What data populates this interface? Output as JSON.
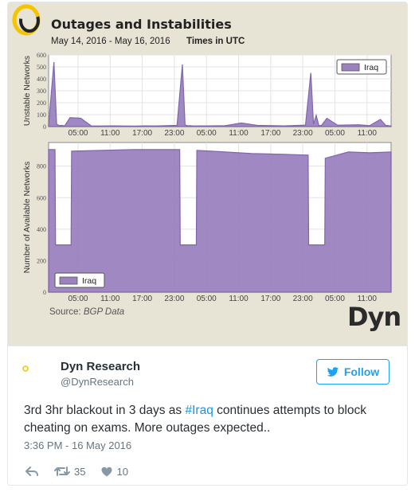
{
  "chart": {
    "title": "Outages and Instabilities",
    "date_range": "May 14, 2016 - May 16, 2016",
    "timezone": "Times in UTC",
    "source_label": "Source:",
    "source_value": "BGP Data",
    "brand": "Dyn"
  },
  "chart_data": [
    {
      "type": "area",
      "ylabel": "Unstable Networks",
      "ylim": [
        0,
        600
      ],
      "yticks": [
        "600",
        "500",
        "400",
        "300",
        "200",
        "100",
        "0"
      ],
      "xticks": [
        "05:00",
        "11:00",
        "17:00",
        "23:00",
        "05:00",
        "11:00",
        "17:00",
        "23:00",
        "05:00",
        "11:00"
      ],
      "legend": "Iraq",
      "legend_position": "top-right",
      "grid": true,
      "color": "#9b82bf",
      "x_hours": [
        0,
        1,
        1.5,
        2,
        2.5,
        3,
        4,
        6,
        8,
        10,
        12,
        14,
        16,
        18,
        20,
        24,
        25,
        25.5,
        26,
        26.5,
        27,
        30,
        33,
        36,
        39,
        42,
        44,
        48,
        49,
        49.5,
        50,
        50.5,
        51,
        52,
        54,
        58,
        60,
        62,
        63,
        64
      ],
      "values": [
        15,
        540,
        20,
        8,
        10,
        5,
        75,
        70,
        5,
        5,
        6,
        5,
        4,
        6,
        5,
        10,
        520,
        15,
        6,
        8,
        5,
        6,
        8,
        30,
        10,
        8,
        6,
        12,
        450,
        20,
        95,
        8,
        10,
        70,
        12,
        15,
        8,
        60,
        10,
        5
      ]
    },
    {
      "type": "area",
      "ylabel": "Number of Available Networks",
      "ylim": [
        0,
        950
      ],
      "yticks": [
        "800",
        "600",
        "400",
        "200",
        "0"
      ],
      "xticks": [
        "05:00",
        "11:00",
        "17:00",
        "23:00",
        "05:00",
        "11:00",
        "17:00",
        "23:00",
        "05:00",
        "11:00"
      ],
      "legend": "Iraq",
      "legend_position": "bottom-left",
      "grid": true,
      "color": "#9b82bf",
      "x_hours": [
        0,
        1.2,
        1.3,
        4.2,
        4.3,
        10,
        16,
        21,
        24.5,
        24.6,
        27.6,
        27.7,
        33,
        38,
        44,
        48.5,
        48.6,
        51.6,
        51.7,
        56,
        60,
        64
      ],
      "values": [
        905,
        905,
        300,
        300,
        895,
        900,
        905,
        905,
        905,
        300,
        300,
        900,
        890,
        880,
        875,
        870,
        300,
        300,
        850,
        890,
        885,
        890
      ]
    }
  ],
  "tweet": {
    "avatar_label": "Dyn Research",
    "author_name": "Dyn Research",
    "author_handle": "@DynResearch",
    "follow_label": "Follow",
    "text_before": "3rd 3hr blackout in 3 days as ",
    "hashtag": "#Iraq",
    "text_after": " continues attempts to block cheating on exams. More outages expected..",
    "timestamp": "3:36 PM - 16 May 2016",
    "retweets": "35",
    "likes": "10"
  },
  "colors": {
    "accent": "#1da1f2",
    "area": "#9b82bf",
    "panel": "#e7e3d5"
  }
}
